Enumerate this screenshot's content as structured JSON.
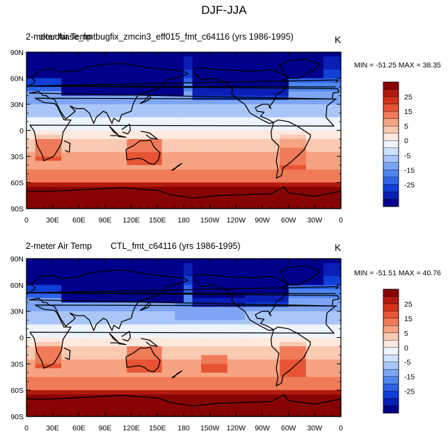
{
  "figure_title": "DJF-JJA",
  "chart_data": [
    {
      "type": "heatmap",
      "left_label": "2-meter Air Temp",
      "case_label": "cloudbase_fmtbugfix_zmcin3_eff015_fmt_c64116 (yrs 1986-1995)",
      "units": "K",
      "stats": "MIN = -51.25 MAX =  38.35",
      "xticks": [
        "0",
        "30E",
        "60E",
        "90E",
        "120E",
        "150E",
        "180",
        "150W",
        "120W",
        "90W",
        "60W",
        "30W",
        "0"
      ],
      "yticks": [
        "90N",
        "60N",
        "30N",
        "0",
        "30S",
        "60S",
        "90S"
      ],
      "colorbar_labels": [
        "25",
        "15",
        "5",
        "0",
        "-5",
        "-15",
        "-25"
      ],
      "colorbar_levels": [
        -35,
        -30,
        -25,
        -20,
        -15,
        -10,
        -5,
        -2,
        0,
        2,
        5,
        10,
        15,
        20,
        25,
        30,
        35
      ],
      "colorbar_colors": [
        "#00008a",
        "#0a1fb5",
        "#0f3fd6",
        "#2e63e6",
        "#4f86ef",
        "#7da5f3",
        "#a9c6f7",
        "#cfe2fb",
        "#eef4fd",
        "#fde9de",
        "#f9c9b1",
        "#f5a383",
        "#ef7b58",
        "#e65434",
        "#d3331c",
        "#b11a10",
        "#870404"
      ]
    },
    {
      "type": "heatmap",
      "left_label": "2-meter Air Temp",
      "case_label": "CTL_fmt_c64116 (yrs 1986-1995)",
      "units": "K",
      "stats": "MIN = -51.51 MAX =  40.76",
      "xticks": [
        "0",
        "30E",
        "60E",
        "90E",
        "120E",
        "150E",
        "180",
        "150W",
        "120W",
        "90W",
        "60W",
        "30W",
        "0"
      ],
      "yticks": [
        "90N",
        "60N",
        "30N",
        "0",
        "30S",
        "60S",
        "90S"
      ],
      "colorbar_labels": [
        "25",
        "15",
        "5",
        "0",
        "-5",
        "-15",
        "-25"
      ],
      "colorbar_levels": [
        -35,
        -30,
        -25,
        -20,
        -15,
        -10,
        -5,
        -2,
        0,
        2,
        5,
        10,
        15,
        20,
        25,
        30,
        35
      ],
      "colorbar_colors": [
        "#00008a",
        "#0a1fb5",
        "#0f3fd6",
        "#2e63e6",
        "#4f86ef",
        "#7da5f3",
        "#a9c6f7",
        "#cfe2fb",
        "#eef4fd",
        "#fde9de",
        "#f9c9b1",
        "#f5a383",
        "#ef7b58",
        "#e65434",
        "#d3331c",
        "#b11a10",
        "#870404"
      ]
    }
  ]
}
